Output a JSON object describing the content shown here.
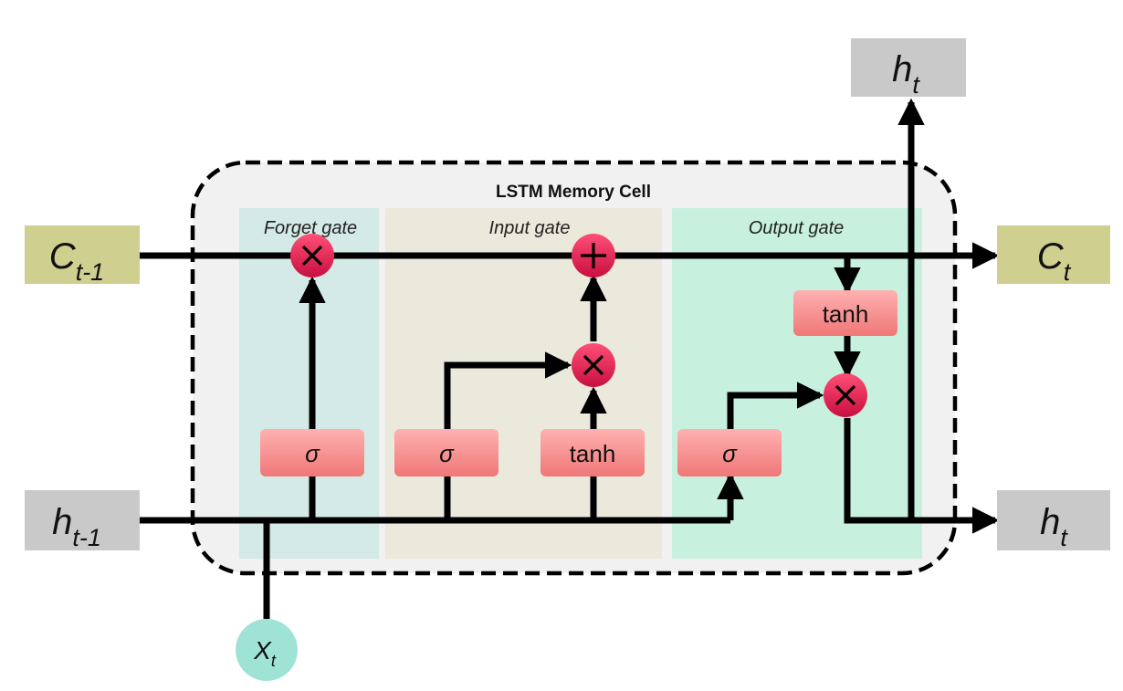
{
  "title": "LSTM Memory Cell",
  "sections": {
    "forget": "Forget gate",
    "input": "Input gate",
    "output": "Output gate"
  },
  "io": {
    "c_prev": {
      "base": "C",
      "sub": "t-1"
    },
    "c_next": {
      "base": "C",
      "sub": "t"
    },
    "h_prev": {
      "base": "h",
      "sub": "t-1"
    },
    "h_next": {
      "base": "h",
      "sub": "t"
    },
    "h_top": {
      "base": "h",
      "sub": "t"
    },
    "x_in": {
      "base": "X",
      "sub": "t"
    }
  },
  "boxes": {
    "forget_sigma": "σ",
    "input_sigma": "σ",
    "input_tanh": "tanh",
    "output_sigma": "σ",
    "output_tanh": "tanh"
  },
  "colors": {
    "io_olive": "#cfcf8f",
    "io_gray": "#c9c9c9",
    "x_node": "#9fe3d7",
    "cell_bg": "#f1f1f1",
    "forget_bg": "#d3eae6",
    "input_bg": "#ebe8dc",
    "output_bg": "#c8f0df",
    "gate_box": "#f48a8a",
    "operator": "#e61f52"
  }
}
